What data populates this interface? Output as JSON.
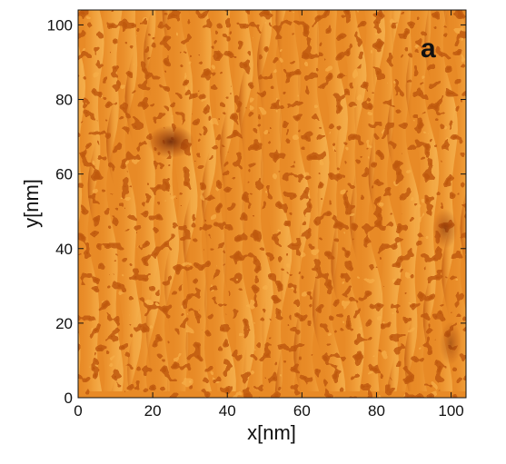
{
  "panel_label": "a",
  "image": {
    "subject": "orange surface topography image with vertical stepped terraces and speckled texture",
    "colors": {
      "base": "#e88a26",
      "light": "#f7b04a",
      "highlight": "#ffd170",
      "dark": "#c05a10",
      "deep": "#8a3208"
    }
  },
  "axes": {
    "x": {
      "label": "x[nm]",
      "range": [
        0,
        104
      ],
      "ticks": [
        {
          "value": 0,
          "label": "0"
        },
        {
          "value": 20,
          "label": "20"
        },
        {
          "value": 40,
          "label": "40"
        },
        {
          "value": 60,
          "label": "60"
        },
        {
          "value": 80,
          "label": "80"
        },
        {
          "value": 100,
          "label": "100"
        }
      ]
    },
    "y": {
      "label": "y[nm]",
      "range": [
        0,
        104
      ],
      "ticks": [
        {
          "value": 0,
          "label": "0"
        },
        {
          "value": 20,
          "label": "20"
        },
        {
          "value": 40,
          "label": "40"
        },
        {
          "value": 60,
          "label": "60"
        },
        {
          "value": 80,
          "label": "80"
        },
        {
          "value": 100,
          "label": "100"
        }
      ]
    }
  }
}
